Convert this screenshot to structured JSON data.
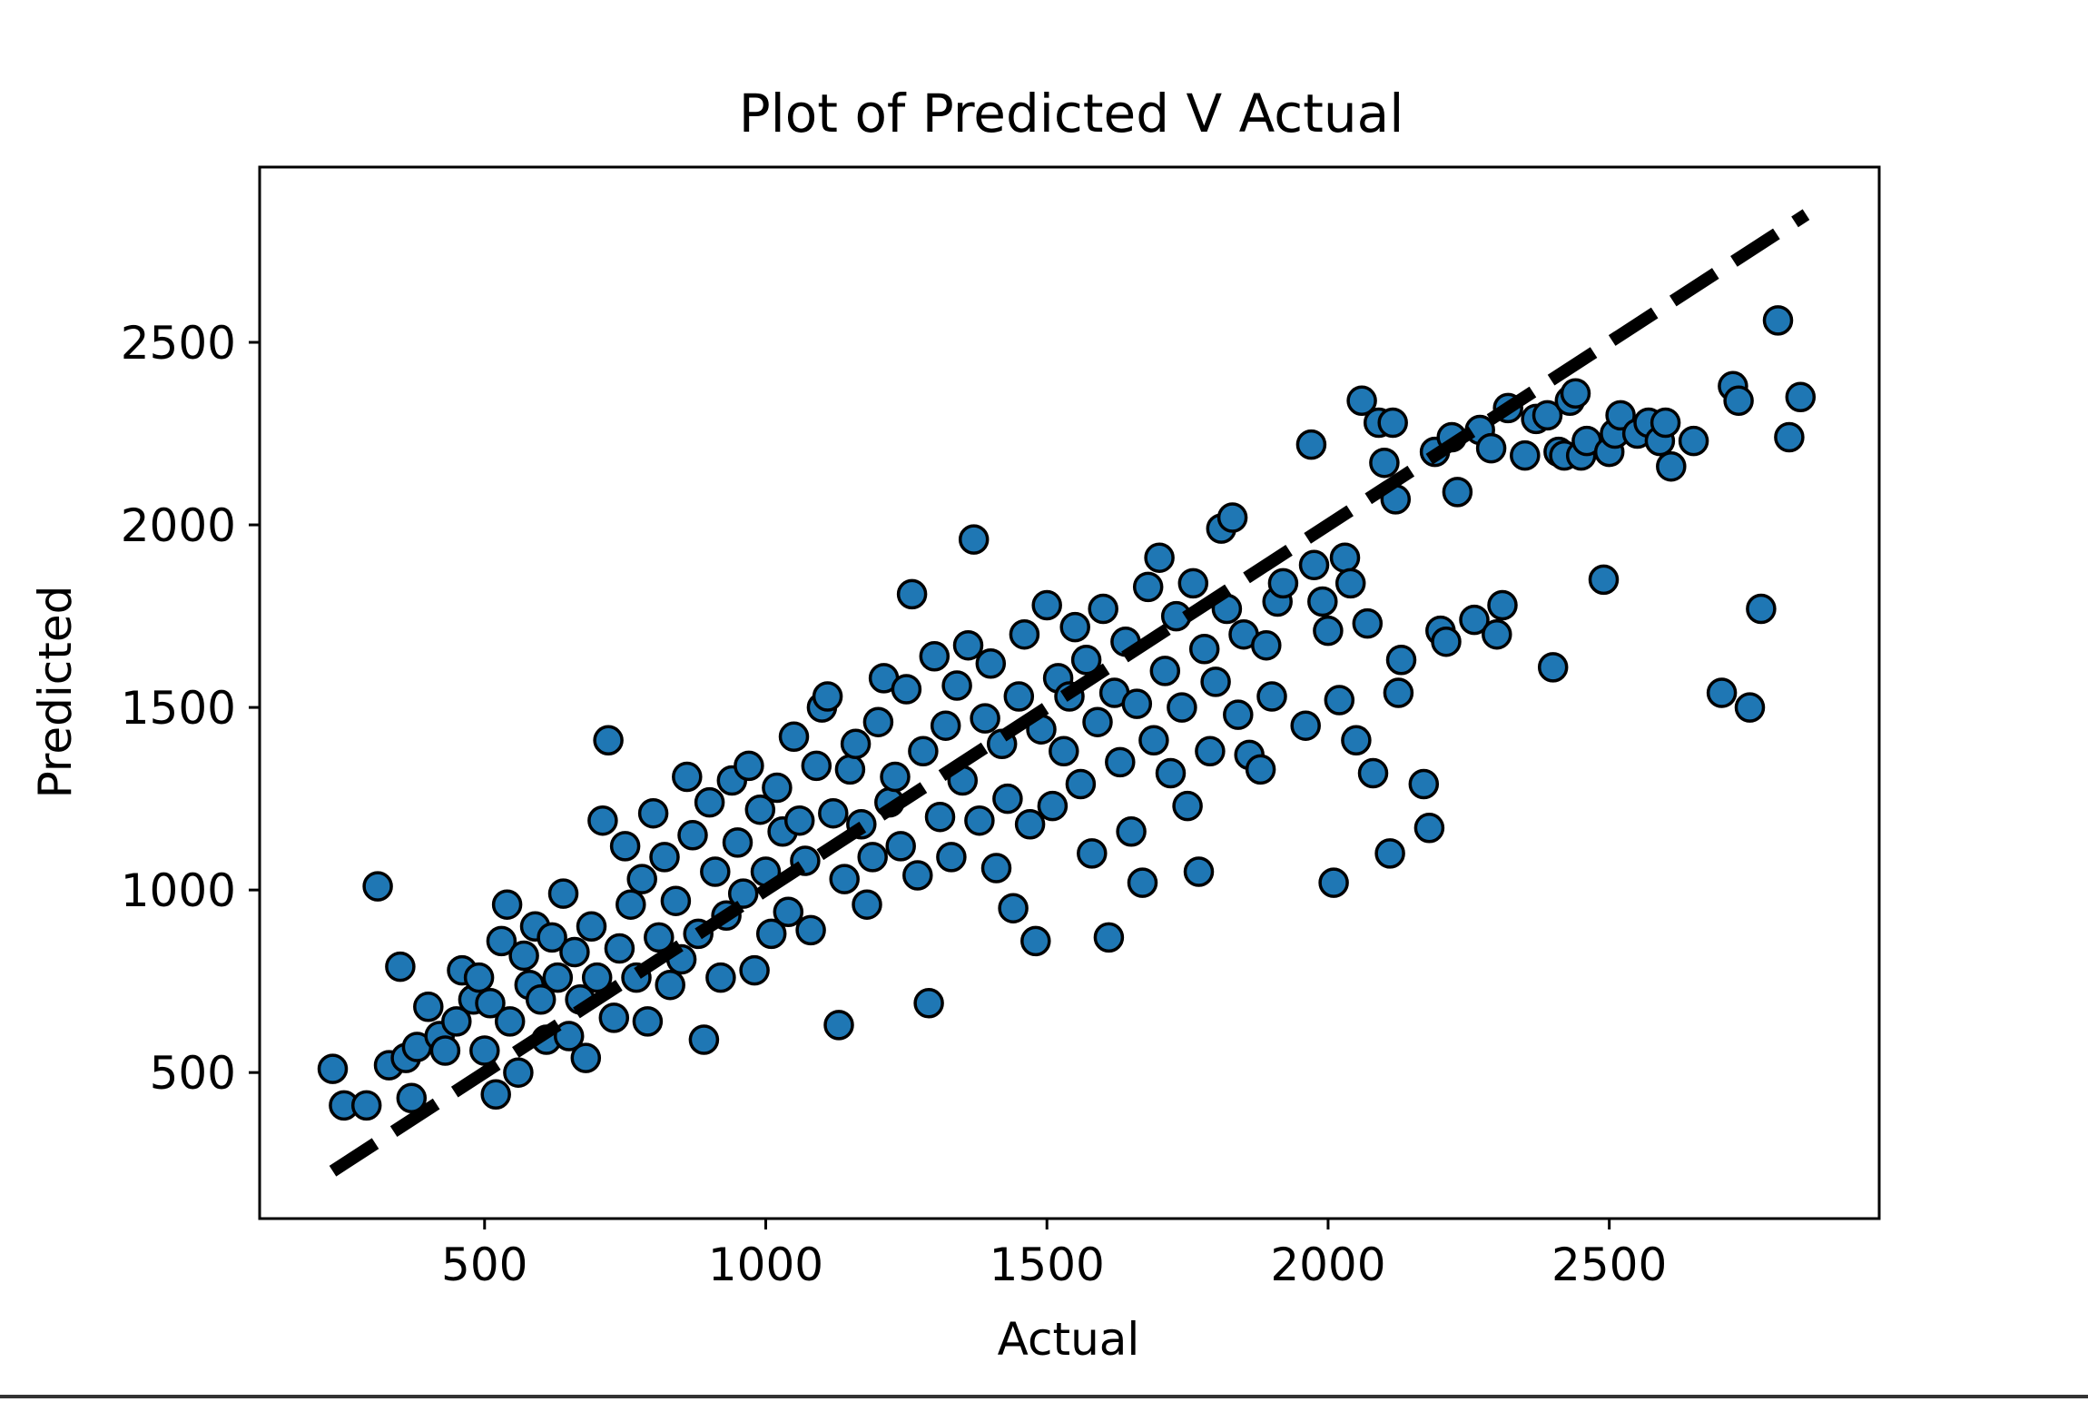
{
  "chart_data": {
    "type": "scatter",
    "title": "Plot of Predicted V Actual",
    "xlabel": "Actual",
    "ylabel": "Predicted",
    "xlim": [
      100,
      2980
    ],
    "ylim": [
      100,
      2980
    ],
    "x_ticks": [
      500,
      1000,
      1500,
      2000,
      2500
    ],
    "y_ticks": [
      500,
      1000,
      1500,
      2000,
      2500
    ],
    "x_tick_labels": [
      "500",
      "1000",
      "1500",
      "2000",
      "2500"
    ],
    "y_tick_labels": [
      "500",
      "1000",
      "1500",
      "2000",
      "2500"
    ],
    "grid": false,
    "legend": "none",
    "marker_color": "#1f77b4",
    "marker_edge_color": "#000000",
    "reference_line": {
      "style": "dashed",
      "color": "#000000",
      "x": [
        230,
        2850
      ],
      "y": [
        230,
        2850
      ]
    },
    "series": [
      {
        "points": [
          [
            230,
            510
          ],
          [
            250,
            410
          ],
          [
            290,
            410
          ],
          [
            310,
            1010
          ],
          [
            330,
            520
          ],
          [
            350,
            790
          ],
          [
            360,
            540
          ],
          [
            370,
            430
          ],
          [
            380,
            570
          ],
          [
            400,
            680
          ],
          [
            420,
            600
          ],
          [
            430,
            560
          ],
          [
            450,
            640
          ],
          [
            460,
            780
          ],
          [
            480,
            700
          ],
          [
            490,
            760
          ],
          [
            500,
            560
          ],
          [
            510,
            690
          ],
          [
            520,
            440
          ],
          [
            530,
            860
          ],
          [
            540,
            960
          ],
          [
            545,
            640
          ],
          [
            560,
            500
          ],
          [
            570,
            820
          ],
          [
            580,
            740
          ],
          [
            590,
            900
          ],
          [
            600,
            700
          ],
          [
            610,
            590
          ],
          [
            620,
            870
          ],
          [
            630,
            760
          ],
          [
            640,
            990
          ],
          [
            650,
            600
          ],
          [
            660,
            830
          ],
          [
            670,
            700
          ],
          [
            680,
            540
          ],
          [
            690,
            900
          ],
          [
            700,
            760
          ],
          [
            710,
            1190
          ],
          [
            720,
            1410
          ],
          [
            730,
            650
          ],
          [
            740,
            840
          ],
          [
            750,
            1120
          ],
          [
            760,
            960
          ],
          [
            770,
            760
          ],
          [
            780,
            1030
          ],
          [
            790,
            640
          ],
          [
            800,
            1210
          ],
          [
            810,
            870
          ],
          [
            820,
            1090
          ],
          [
            830,
            740
          ],
          [
            840,
            970
          ],
          [
            850,
            810
          ],
          [
            860,
            1310
          ],
          [
            870,
            1150
          ],
          [
            880,
            880
          ],
          [
            890,
            590
          ],
          [
            900,
            1240
          ],
          [
            910,
            1050
          ],
          [
            920,
            760
          ],
          [
            930,
            930
          ],
          [
            940,
            1300
          ],
          [
            950,
            1130
          ],
          [
            960,
            990
          ],
          [
            970,
            1340
          ],
          [
            980,
            780
          ],
          [
            990,
            1220
          ],
          [
            1000,
            1050
          ],
          [
            1010,
            880
          ],
          [
            1020,
            1280
          ],
          [
            1030,
            1160
          ],
          [
            1040,
            940
          ],
          [
            1050,
            1420
          ],
          [
            1060,
            1190
          ],
          [
            1070,
            1080
          ],
          [
            1080,
            890
          ],
          [
            1090,
            1340
          ],
          [
            1100,
            1500
          ],
          [
            1110,
            1530
          ],
          [
            1120,
            1210
          ],
          [
            1130,
            630
          ],
          [
            1140,
            1030
          ],
          [
            1150,
            1330
          ],
          [
            1160,
            1400
          ],
          [
            1170,
            1180
          ],
          [
            1180,
            960
          ],
          [
            1190,
            1090
          ],
          [
            1200,
            1460
          ],
          [
            1210,
            1580
          ],
          [
            1220,
            1240
          ],
          [
            1230,
            1310
          ],
          [
            1240,
            1120
          ],
          [
            1250,
            1550
          ],
          [
            1260,
            1810
          ],
          [
            1270,
            1040
          ],
          [
            1280,
            1380
          ],
          [
            1290,
            690
          ],
          [
            1300,
            1640
          ],
          [
            1310,
            1200
          ],
          [
            1320,
            1450
          ],
          [
            1330,
            1090
          ],
          [
            1340,
            1560
          ],
          [
            1350,
            1300
          ],
          [
            1360,
            1670
          ],
          [
            1370,
            1960
          ],
          [
            1380,
            1190
          ],
          [
            1390,
            1470
          ],
          [
            1400,
            1620
          ],
          [
            1410,
            1060
          ],
          [
            1420,
            1400
          ],
          [
            1430,
            1250
          ],
          [
            1440,
            950
          ],
          [
            1450,
            1530
          ],
          [
            1460,
            1700
          ],
          [
            1470,
            1180
          ],
          [
            1480,
            860
          ],
          [
            1490,
            1440
          ],
          [
            1500,
            1780
          ],
          [
            1510,
            1230
          ],
          [
            1520,
            1580
          ],
          [
            1530,
            1380
          ],
          [
            1540,
            1530
          ],
          [
            1550,
            1720
          ],
          [
            1560,
            1290
          ],
          [
            1570,
            1630
          ],
          [
            1580,
            1100
          ],
          [
            1590,
            1460
          ],
          [
            1600,
            1770
          ],
          [
            1610,
            870
          ],
          [
            1620,
            1540
          ],
          [
            1630,
            1350
          ],
          [
            1640,
            1680
          ],
          [
            1650,
            1160
          ],
          [
            1660,
            1510
          ],
          [
            1670,
            1020
          ],
          [
            1680,
            1830
          ],
          [
            1690,
            1410
          ],
          [
            1700,
            1910
          ],
          [
            1710,
            1600
          ],
          [
            1720,
            1320
          ],
          [
            1730,
            1750
          ],
          [
            1740,
            1500
          ],
          [
            1750,
            1230
          ],
          [
            1760,
            1840
          ],
          [
            1770,
            1050
          ],
          [
            1780,
            1660
          ],
          [
            1790,
            1380
          ],
          [
            1800,
            1570
          ],
          [
            1810,
            1990
          ],
          [
            1820,
            1770
          ],
          [
            1830,
            2020
          ],
          [
            1840,
            1480
          ],
          [
            1850,
            1700
          ],
          [
            1860,
            1370
          ],
          [
            1880,
            1330
          ],
          [
            1890,
            1670
          ],
          [
            1900,
            1530
          ],
          [
            1910,
            1790
          ],
          [
            1920,
            1840
          ],
          [
            1960,
            1450
          ],
          [
            1970,
            2220
          ],
          [
            1975,
            1890
          ],
          [
            1990,
            1790
          ],
          [
            2000,
            1710
          ],
          [
            2010,
            1020
          ],
          [
            2020,
            1520
          ],
          [
            2030,
            1910
          ],
          [
            2040,
            1840
          ],
          [
            2050,
            1410
          ],
          [
            2060,
            2340
          ],
          [
            2070,
            1730
          ],
          [
            2080,
            1320
          ],
          [
            2090,
            2280
          ],
          [
            2100,
            2170
          ],
          [
            2110,
            1100
          ],
          [
            2115,
            2280
          ],
          [
            2120,
            2070
          ],
          [
            2125,
            1540
          ],
          [
            2130,
            1630
          ],
          [
            2170,
            1290
          ],
          [
            2180,
            1170
          ],
          [
            2190,
            2200
          ],
          [
            2200,
            1710
          ],
          [
            2210,
            1680
          ],
          [
            2220,
            2240
          ],
          [
            2230,
            2090
          ],
          [
            2260,
            1740
          ],
          [
            2270,
            2260
          ],
          [
            2290,
            2210
          ],
          [
            2300,
            1700
          ],
          [
            2310,
            1780
          ],
          [
            2320,
            2320
          ],
          [
            2350,
            2190
          ],
          [
            2370,
            2290
          ],
          [
            2390,
            2300
          ],
          [
            2400,
            1610
          ],
          [
            2410,
            2200
          ],
          [
            2420,
            2190
          ],
          [
            2430,
            2340
          ],
          [
            2440,
            2360
          ],
          [
            2450,
            2190
          ],
          [
            2460,
            2230
          ],
          [
            2490,
            1850
          ],
          [
            2500,
            2200
          ],
          [
            2510,
            2250
          ],
          [
            2520,
            2300
          ],
          [
            2550,
            2250
          ],
          [
            2570,
            2280
          ],
          [
            2590,
            2230
          ],
          [
            2600,
            2280
          ],
          [
            2610,
            2160
          ],
          [
            2650,
            2230
          ],
          [
            2700,
            1540
          ],
          [
            2720,
            2380
          ],
          [
            2730,
            2340
          ],
          [
            2750,
            1500
          ],
          [
            2770,
            1770
          ],
          [
            2800,
            2560
          ],
          [
            2820,
            2240
          ],
          [
            2840,
            2350
          ]
        ]
      }
    ]
  }
}
